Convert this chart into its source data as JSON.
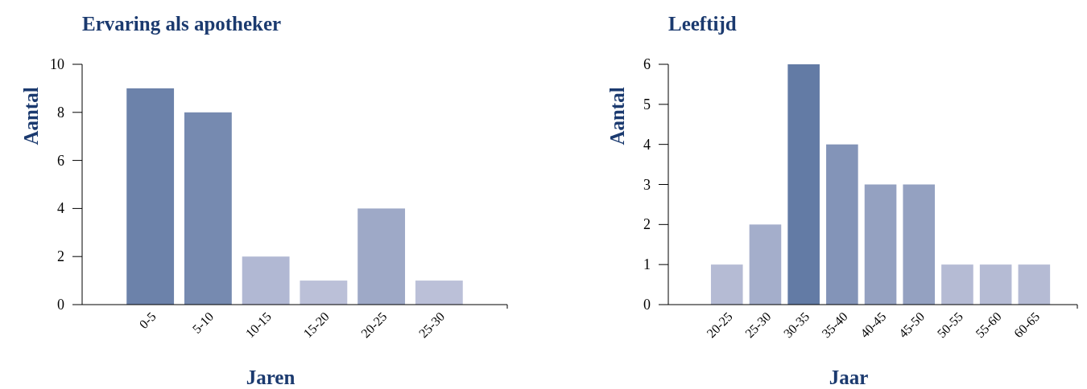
{
  "chart_data": [
    {
      "type": "bar",
      "title": "Ervaring als apotheker",
      "xlabel": "Jaren",
      "ylabel": "Aantal",
      "categories": [
        "0-5",
        "5-10",
        "10-15",
        "15-20",
        "20-25",
        "25-30"
      ],
      "series": [
        {
          "colors": [
            "#6c82aa",
            "#768ab0",
            "#b1b8d3",
            "#bbc0d8",
            "#9ea9c7",
            "#bbc0d8"
          ],
          "values": [
            9,
            8,
            2,
            1,
            4,
            1
          ]
        }
      ],
      "ylim": [
        0,
        10
      ],
      "yticks": [
        0,
        2,
        4,
        6,
        8,
        10
      ],
      "grid": false
    },
    {
      "type": "bar",
      "title": "Leeftijd",
      "xlabel": "Jaar",
      "ylabel": "Aantal",
      "categories": [
        "20-25",
        "25-30",
        "30-35",
        "35-40",
        "40-45",
        "45-50",
        "50-55",
        "55-60",
        "60-65"
      ],
      "series": [
        {
          "colors": [
            "#b5bbd4",
            "#a4aecb",
            "#637ba5",
            "#8394b8",
            "#94a1c1",
            "#94a1c1",
            "#b5bbd4",
            "#b5bbd4",
            "#b5bbd4"
          ],
          "values": [
            1,
            2,
            6,
            4,
            3,
            3,
            1,
            1,
            1
          ]
        }
      ],
      "ylim": [
        0,
        6
      ],
      "yticks": [
        0,
        1,
        2,
        3,
        4,
        5,
        6
      ],
      "grid": false
    }
  ]
}
